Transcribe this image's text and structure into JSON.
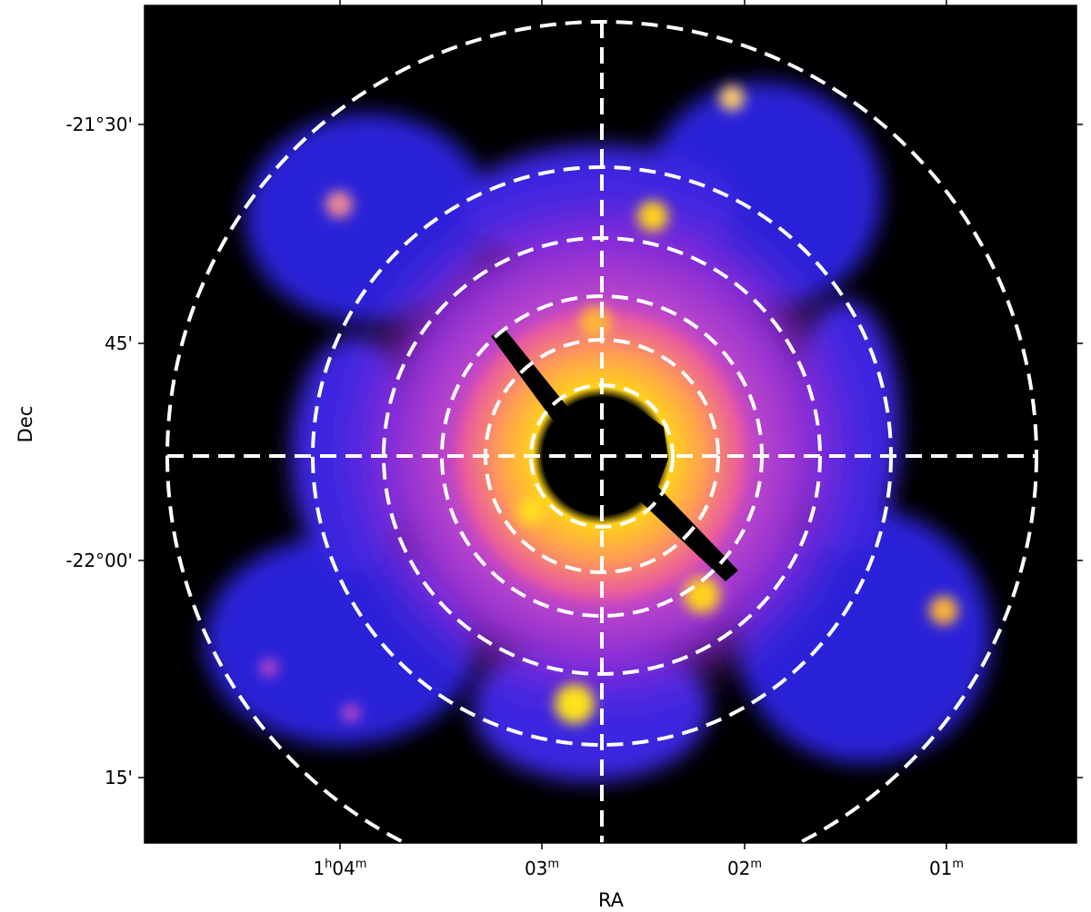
{
  "figure": {
    "xlabel": "RA",
    "ylabel": "Dec",
    "colormap": "gnuplot2",
    "background_color": "#000000",
    "overlay_color": "#ffffff",
    "overlay_style": "dashed concentric circles with dashed crosshair"
  },
  "ra_ticks": [
    {
      "h": "1",
      "m": "04"
    },
    {
      "h": "",
      "m": "03"
    },
    {
      "h": "",
      "m": "02"
    },
    {
      "h": "",
      "m": "01"
    }
  ],
  "dec_ticks": [
    "-21°30'",
    "45'",
    "-22°00'",
    "15'"
  ],
  "unit_labels": {
    "hour": "h",
    "minute": "m"
  }
}
